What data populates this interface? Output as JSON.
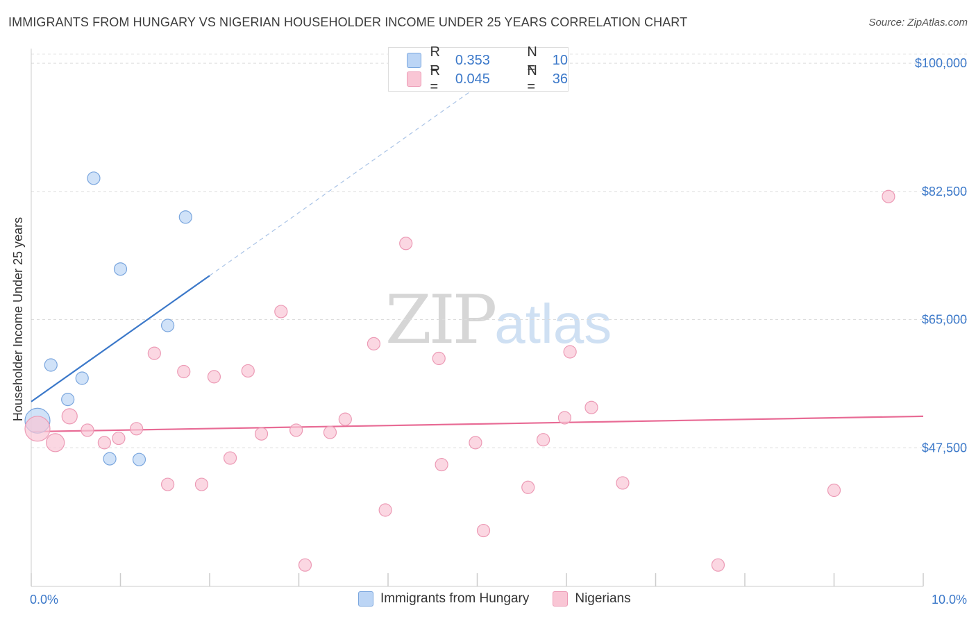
{
  "title": "IMMIGRANTS FROM HUNGARY VS NIGERIAN HOUSEHOLDER INCOME UNDER 25 YEARS CORRELATION CHART",
  "source": "Source: ZipAtlas.com",
  "watermark": {
    "zip": "ZIP",
    "atlas": "atlas"
  },
  "legend": {
    "rows": [
      {
        "r_label": "R = ",
        "r_value": "0.353",
        "n_label": "N = ",
        "n_value": "10",
        "color": "#bcd5f5"
      },
      {
        "r_label": "R = ",
        "r_value": "0.045",
        "n_label": "N = ",
        "n_value": "36",
        "color": "#f9c6d5"
      }
    ]
  },
  "bottom_legend": {
    "items": [
      {
        "label": "Immigrants from Hungary",
        "color": "#bcd5f5"
      },
      {
        "label": "Nigerians",
        "color": "#f9c6d5"
      }
    ]
  },
  "chart_data": {
    "type": "scatter",
    "title": "IMMIGRANTS FROM HUNGARY VS NIGERIAN HOUSEHOLDER INCOME UNDER 25 YEARS CORRELATION CHART",
    "xlabel": "",
    "ylabel": "Householder Income Under 25 years",
    "xlim": [
      0,
      10
    ],
    "ylim": [
      30000,
      102000
    ],
    "x_tick_labels": [
      "0.0%",
      "10.0%"
    ],
    "y_ticks": [
      47500,
      65000,
      82500,
      100000
    ],
    "y_tick_labels": [
      "$47,500",
      "$65,000",
      "$82,500",
      "$100,000"
    ],
    "grid": true,
    "series": [
      {
        "name": "Immigrants from Hungary",
        "color": "#3b78c9",
        "fill": "#bcd5f5",
        "points": [
          {
            "x": 0.07,
            "y": 51200,
            "size": 18
          },
          {
            "x": 0.22,
            "y": 58800,
            "size": 9
          },
          {
            "x": 0.41,
            "y": 54100,
            "size": 9
          },
          {
            "x": 0.57,
            "y": 57000,
            "size": 9
          },
          {
            "x": 0.7,
            "y": 84300,
            "size": 9
          },
          {
            "x": 0.88,
            "y": 46000,
            "size": 9
          },
          {
            "x": 1.0,
            "y": 71900,
            "size": 9
          },
          {
            "x": 1.21,
            "y": 45900,
            "size": 9
          },
          {
            "x": 1.53,
            "y": 64200,
            "size": 9
          },
          {
            "x": 1.73,
            "y": 79000,
            "size": 9
          }
        ],
        "trend": {
          "x0": 0,
          "y0": 53800,
          "x1": 2.0,
          "y1": 71000,
          "dash_to_x": 5.0,
          "dash_to_y": 96800
        }
      },
      {
        "name": "Nigerians",
        "color": "#e86b95",
        "fill": "#f9c6d5",
        "points": [
          {
            "x": 0.07,
            "y": 50100,
            "size": 18
          },
          {
            "x": 0.27,
            "y": 48200,
            "size": 13
          },
          {
            "x": 0.43,
            "y": 51800,
            "size": 11
          },
          {
            "x": 0.63,
            "y": 49900,
            "size": 9
          },
          {
            "x": 0.82,
            "y": 48200,
            "size": 9
          },
          {
            "x": 0.98,
            "y": 48800,
            "size": 9
          },
          {
            "x": 1.18,
            "y": 50100,
            "size": 9
          },
          {
            "x": 1.38,
            "y": 60400,
            "size": 9
          },
          {
            "x": 1.53,
            "y": 42500,
            "size": 9
          },
          {
            "x": 1.71,
            "y": 57900,
            "size": 9
          },
          {
            "x": 1.91,
            "y": 42500,
            "size": 9
          },
          {
            "x": 2.05,
            "y": 57200,
            "size": 9
          },
          {
            "x": 2.23,
            "y": 46100,
            "size": 9
          },
          {
            "x": 2.43,
            "y": 58000,
            "size": 9
          },
          {
            "x": 2.58,
            "y": 49400,
            "size": 9
          },
          {
            "x": 2.8,
            "y": 66100,
            "size": 9
          },
          {
            "x": 2.97,
            "y": 49900,
            "size": 9
          },
          {
            "x": 3.07,
            "y": 31500,
            "size": 9
          },
          {
            "x": 3.35,
            "y": 49600,
            "size": 9
          },
          {
            "x": 3.52,
            "y": 51400,
            "size": 9
          },
          {
            "x": 3.84,
            "y": 61700,
            "size": 9
          },
          {
            "x": 3.97,
            "y": 39000,
            "size": 9
          },
          {
            "x": 4.2,
            "y": 75400,
            "size": 9
          },
          {
            "x": 4.57,
            "y": 59700,
            "size": 9
          },
          {
            "x": 4.6,
            "y": 45200,
            "size": 9
          },
          {
            "x": 4.98,
            "y": 48200,
            "size": 9
          },
          {
            "x": 5.07,
            "y": 36200,
            "size": 9
          },
          {
            "x": 5.57,
            "y": 42100,
            "size": 9
          },
          {
            "x": 5.74,
            "y": 48600,
            "size": 9
          },
          {
            "x": 5.98,
            "y": 51600,
            "size": 9
          },
          {
            "x": 6.04,
            "y": 60600,
            "size": 9
          },
          {
            "x": 6.28,
            "y": 53000,
            "size": 9
          },
          {
            "x": 6.63,
            "y": 42700,
            "size": 9
          },
          {
            "x": 7.7,
            "y": 31500,
            "size": 9
          },
          {
            "x": 9.0,
            "y": 41700,
            "size": 9
          },
          {
            "x": 9.61,
            "y": 81800,
            "size": 9
          }
        ],
        "trend": {
          "x0": 0,
          "y0": 49700,
          "x1": 10,
          "y1": 51800
        }
      }
    ]
  }
}
